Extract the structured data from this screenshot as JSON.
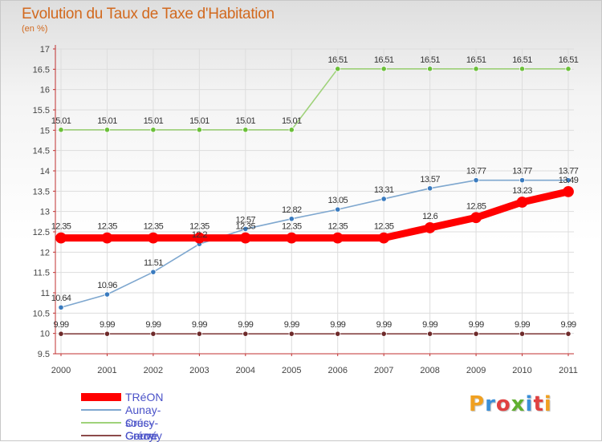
{
  "chart_data": {
    "type": "line",
    "title": "Evolution du Taux de Taxe d'Habitation",
    "subtitle": "(en %)",
    "x": [
      "2000",
      "2001",
      "2002",
      "2003",
      "2004",
      "2005",
      "2006",
      "2007",
      "2008",
      "2009",
      "2010",
      "2011"
    ],
    "ylim": [
      9.5,
      17
    ],
    "yticks": [
      "9.5",
      "10",
      "10.5",
      "11",
      "11.5",
      "12",
      "12.5",
      "13",
      "13.5",
      "14",
      "14.5",
      "15",
      "15.5",
      "16",
      "16.5",
      "17"
    ],
    "grid": true,
    "legend_placement": "bottom-left",
    "series": [
      {
        "name": "TRéON",
        "color": "#ff0000",
        "marker_color": "#ff0000",
        "emphasis": true,
        "values": [
          12.35,
          12.35,
          12.35,
          12.35,
          12.35,
          12.35,
          12.35,
          12.35,
          12.6,
          12.85,
          13.23,
          13.49
        ],
        "labels": [
          "12.35",
          "12.35",
          "12.35",
          "12.35",
          "12.35",
          "12.35",
          "12.35",
          "12.35",
          "12.6",
          "12.85",
          "13.23",
          "13.49"
        ]
      },
      {
        "name": "Aunay-sous-Crécy",
        "color": "#7ea7cf",
        "marker_color": "#3a7bbf",
        "values": [
          10.64,
          10.96,
          11.51,
          12.2,
          12.57,
          12.82,
          13.05,
          13.31,
          13.57,
          13.77,
          13.77,
          13.77
        ],
        "labels": [
          "10.64",
          "10.96",
          "11.51",
          "12.2",
          "12.57",
          "12.82",
          "13.05",
          "13.31",
          "13.57",
          "13.77",
          "13.77",
          "13.77"
        ]
      },
      {
        "name": "Crécy-Couvé",
        "color": "#9fd27a",
        "marker_color": "#6cc03a",
        "values": [
          15.01,
          15.01,
          15.01,
          15.01,
          15.01,
          15.01,
          16.51,
          16.51,
          16.51,
          16.51,
          16.51,
          16.51
        ],
        "labels": [
          "15.01",
          "15.01",
          "15.01",
          "15.01",
          "15.01",
          "15.01",
          "16.51",
          "16.51",
          "16.51",
          "16.51",
          "16.51",
          "16.51"
        ]
      },
      {
        "name": "Garnay",
        "color": "#8c4a4a",
        "marker_color": "#6e2a2a",
        "values": [
          9.99,
          9.99,
          9.99,
          9.99,
          9.99,
          9.99,
          9.99,
          9.99,
          9.99,
          9.99,
          9.99,
          9.99
        ],
        "labels": [
          "9.99",
          "9.99",
          "9.99",
          "9.99",
          "9.99",
          "9.99",
          "9.99",
          "9.99",
          "9.99",
          "9.99",
          "9.99",
          "9.99"
        ]
      }
    ]
  },
  "logo": {
    "letters": [
      "P",
      "r",
      "o",
      "x",
      "i",
      "t",
      "i"
    ],
    "colors": [
      "#f0a020",
      "#3a8fd8",
      "#e04040",
      "#60b030",
      "#3a8fd8",
      "#e04040",
      "#f0a020"
    ]
  }
}
